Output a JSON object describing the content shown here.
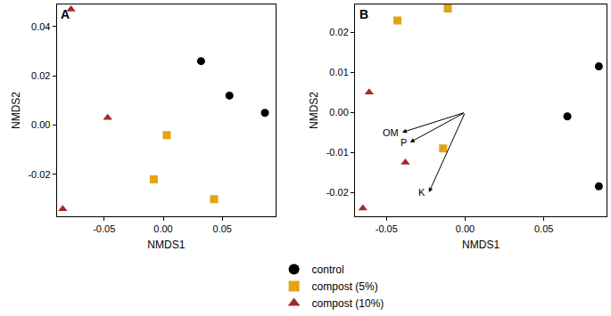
{
  "chart_data": [
    {
      "type": "scatter",
      "title": "A",
      "x_label": "NMDS1",
      "y_label": "NMDS2",
      "xlim": [
        -0.09,
        0.095
      ],
      "ylim": [
        -0.037,
        0.049
      ],
      "xticks": [
        -0.05,
        {
          "value": 0,
          "label": "0.00"
        },
        0.05
      ],
      "yticks": [
        -0.02,
        {
          "value": 0,
          "label": "0.00"
        },
        0.02,
        0.04
      ],
      "legend": "bottom",
      "series": [
        {
          "name": "control",
          "color": "#000000",
          "marker": "circle",
          "x": [
            0.032,
            0.056,
            0.086
          ],
          "values": [
            0.026,
            0.012,
            0.005
          ]
        },
        {
          "name": "compost (5%)",
          "color": "#E5A316",
          "marker": "square",
          "x": [
            0.003,
            -0.008,
            0.043
          ],
          "values": [
            -0.004,
            -0.022,
            -0.03
          ]
        },
        {
          "name": "compost (10%)",
          "color": "#A3282A",
          "marker": "triangle-up",
          "x": [
            -0.078,
            -0.047,
            -0.085
          ],
          "values": [
            0.047,
            0.003,
            -0.034
          ]
        }
      ]
    },
    {
      "type": "scatter",
      "title": "B",
      "x_label": "NMDS1",
      "y_label": "NMDS2",
      "xlim": [
        -0.07,
        0.09
      ],
      "ylim": [
        -0.026,
        0.027
      ],
      "xticks": [
        -0.05,
        {
          "value": 0,
          "label": "0.00"
        },
        0.05
      ],
      "yticks": [
        -0.02,
        -0.01,
        {
          "value": 0,
          "label": "0.00"
        },
        0.01,
        0.02
      ],
      "series": [
        {
          "name": "control",
          "color": "#000000",
          "marker": "circle",
          "x": [
            0.085,
            0.065,
            0.085
          ],
          "values": [
            0.0115,
            -0.001,
            -0.0185
          ]
        },
        {
          "name": "compost (5%)",
          "color": "#E5A316",
          "marker": "square",
          "x": [
            -0.043,
            -0.011,
            -0.014
          ],
          "values": [
            0.023,
            0.026,
            -0.009
          ]
        },
        {
          "name": "compost (10%)",
          "color": "#A3282A",
          "marker": "triangle-up",
          "x": [
            -0.061,
            -0.038,
            -0.065
          ],
          "values": [
            0.005,
            -0.0125,
            -0.024
          ]
        }
      ],
      "arrow_origin": [
        0,
        0
      ],
      "arrows": [
        {
          "label": "OM",
          "x": -0.04,
          "y": -0.005
        },
        {
          "label": "P",
          "x": -0.035,
          "y": -0.0075
        },
        {
          "label": "K",
          "x": -0.023,
          "y": -0.02
        }
      ]
    }
  ]
}
